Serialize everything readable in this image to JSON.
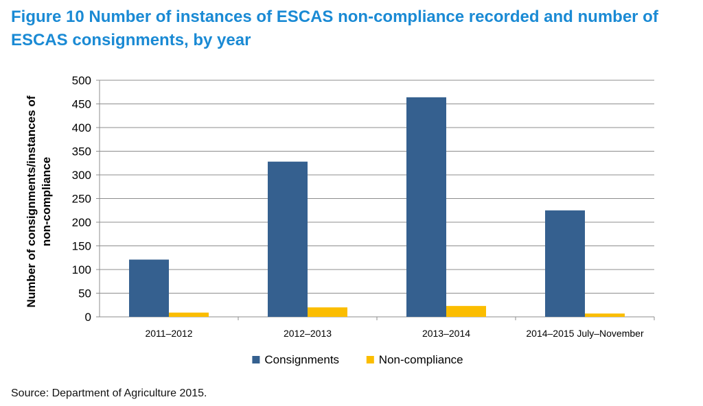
{
  "figure": {
    "title": "Figure 10 Number of instances of ESCAS non-compliance recorded and number of ESCAS consignments, by year",
    "source": "Source: Department of Agriculture 2015."
  },
  "chart_data": {
    "type": "bar",
    "title": "",
    "xlabel": "",
    "ylabel": "Number of consignments/instances of non-compliance",
    "categories": [
      "2011–2012",
      "2012–2013",
      "2013–2014",
      "2014–2015 July–November"
    ],
    "series": [
      {
        "name": "Consignments",
        "color": "#35608f",
        "values": [
          121,
          328,
          464,
          225
        ]
      },
      {
        "name": "Non-compliance",
        "color": "#fbbd00",
        "values": [
          9,
          20,
          23,
          7
        ]
      }
    ],
    "ylim": [
      0,
      500
    ],
    "yticks": [
      0,
      50,
      100,
      150,
      200,
      250,
      300,
      350,
      400,
      450,
      500
    ],
    "grid": true,
    "legend": "bottom"
  }
}
